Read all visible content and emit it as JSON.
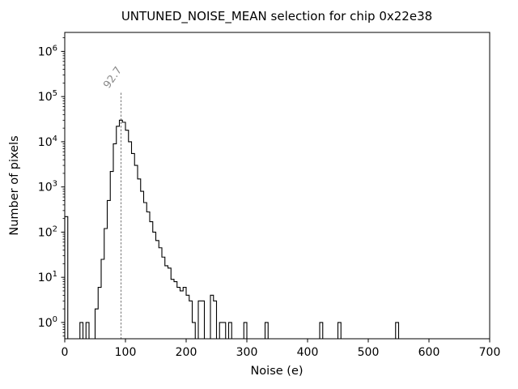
{
  "chart_data": {
    "type": "bar",
    "subtype": "step-histogram",
    "title": "UNTUNED_NOISE_MEAN selection for chip 0x22e38",
    "xlabel": "Noise (e)",
    "ylabel": "Number of pixels",
    "xlim": [
      0,
      700
    ],
    "ylim_log10": [
      -0.36,
      6.42
    ],
    "x_ticks": [
      0,
      100,
      200,
      300,
      400,
      500,
      600,
      700
    ],
    "y_tick_exponents": [
      0,
      1,
      2,
      3,
      4,
      5,
      6
    ],
    "y_scale": "log",
    "grid": false,
    "legend": false,
    "line_color": "#000000",
    "bin_width": 5,
    "bins": [
      [
        0,
        220
      ],
      [
        25,
        1
      ],
      [
        35,
        1
      ],
      [
        50,
        2
      ],
      [
        55,
        6
      ],
      [
        60,
        25
      ],
      [
        65,
        120
      ],
      [
        70,
        500
      ],
      [
        75,
        2200
      ],
      [
        80,
        9000
      ],
      [
        85,
        22000
      ],
      [
        90,
        30000
      ],
      [
        95,
        27000
      ],
      [
        100,
        18000
      ],
      [
        105,
        10000
      ],
      [
        110,
        5500
      ],
      [
        115,
        3000
      ],
      [
        120,
        1500
      ],
      [
        125,
        800
      ],
      [
        130,
        450
      ],
      [
        135,
        280
      ],
      [
        140,
        170
      ],
      [
        145,
        100
      ],
      [
        150,
        65
      ],
      [
        155,
        45
      ],
      [
        160,
        28
      ],
      [
        165,
        18
      ],
      [
        170,
        16
      ],
      [
        175,
        9
      ],
      [
        180,
        8
      ],
      [
        185,
        6
      ],
      [
        190,
        5
      ],
      [
        195,
        6
      ],
      [
        200,
        4
      ],
      [
        205,
        3
      ],
      [
        210,
        1
      ],
      [
        220,
        3
      ],
      [
        225,
        3
      ],
      [
        240,
        4
      ],
      [
        245,
        3
      ],
      [
        255,
        1
      ],
      [
        260,
        1
      ],
      [
        270,
        1
      ],
      [
        295,
        1
      ],
      [
        330,
        1
      ],
      [
        420,
        1
      ],
      [
        450,
        1
      ],
      [
        545,
        1
      ]
    ],
    "vline": {
      "x": 92.7,
      "label": "92.7",
      "color": "#8a8a8a",
      "style": "dotted"
    }
  }
}
